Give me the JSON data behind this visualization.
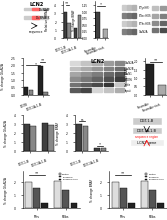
{
  "bg_color": "#ffffff",
  "panel_A": {
    "title": "LCN2"
  },
  "panel_B": {
    "groups": [
      "DGT-1-B",
      "DGT-1A-1-B"
    ],
    "series": [
      {
        "label": "Scramble",
        "color": "#404040",
        "values": [
          3.2,
          1.2
        ]
      },
      {
        "label": "DKK1-shRNA2",
        "color": "#888888",
        "values": [
          1.8,
          2.8
        ]
      }
    ],
    "ylabel": "Relative mRNA",
    "ylim": [
      0,
      4.5
    ]
  },
  "panel_C": {
    "groups": [
      "Scramble",
      "Scramble+inh"
    ],
    "values": [
      1.0,
      0.35
    ],
    "colors": [
      "#404040",
      "#aaaaaa"
    ],
    "ylabel": "% change BRAF",
    "ylim": [
      0,
      1.4
    ]
  },
  "panel_D": {
    "rows": [
      "P-Tyr(HY)",
      "P-Ser-HOS",
      "P-Thr-HOS",
      "GluN2A"
    ],
    "ncols": 3
  },
  "panel_E": {
    "rows": 4,
    "ncols": 2
  },
  "panel_F": {
    "groups": [
      "DGT8",
      "DGT-1A-1-B"
    ],
    "series": [
      {
        "label": "Scramble",
        "color": "#222222",
        "values": [
          0.5,
          1.95
        ]
      },
      {
        "label": "Scramble+inh",
        "color": "#888888",
        "values": [
          0.3,
          0.2
        ]
      }
    ],
    "ylabel": "% change GluN2A",
    "ylim": [
      0,
      2.5
    ]
  },
  "panel_G": {
    "title": "LCN2",
    "blot_rows": 6,
    "blot_cols": 5,
    "row_labels": [
      "GluN2A",
      "GluN2B",
      "GluN1",
      "PSD95",
      "actin",
      "Input"
    ]
  },
  "panel_H": {
    "groups": [
      "Scramble",
      "Scramble+inh"
    ],
    "values": [
      1.85,
      0.55
    ],
    "colors": [
      "#222222",
      "#aaaaaa"
    ],
    "ylabel": "Relative BRAF",
    "ylim": [
      0,
      2.2
    ]
  },
  "panel_I": {
    "series": [
      {
        "label": "Scramble",
        "color": "#404040",
        "values": [
          3.0,
          3.1
        ]
      },
      {
        "label": "Scramble+DKK1",
        "color": "#888888",
        "values": [
          2.8,
          2.85
        ]
      }
    ],
    "groups": [
      "DGT-1-B",
      "DGT-1A-1-B"
    ],
    "ylabel": "% change GluN2A",
    "ylim": [
      0,
      4.0
    ]
  },
  "panel_J": {
    "series": [
      {
        "label": "Scramble",
        "color": "#404040",
        "values": [
          3.0,
          0.4
        ]
      },
      {
        "label": "Scramble+DKK1",
        "color": "#888888",
        "values": [
          2.8,
          0.35
        ]
      }
    ],
    "groups": [
      "DGT-1-B",
      "DGT-1A-1-B"
    ],
    "ylabel": "% change BRAF",
    "ylim": [
      0,
      4.0
    ]
  },
  "panel_M": {
    "groups": [
      "PTrs",
      "PDbs"
    ],
    "series": [
      {
        "label": "Control",
        "color": "#dddddd",
        "values": [
          2.0,
          2.1
        ]
      },
      {
        "label": "Scramble",
        "color": "#555555",
        "values": [
          1.5,
          1.4
        ]
      },
      {
        "label": "Scramble+inh",
        "color": "#222222",
        "values": [
          0.4,
          0.35
        ]
      }
    ],
    "ylabel": "% change GluN2A",
    "ylim": [
      0,
      2.8
    ]
  },
  "panel_N": {
    "groups": [
      "PTrs",
      "PDbs"
    ],
    "series": [
      {
        "label": "Control",
        "color": "#dddddd",
        "values": [
          2.0,
          2.1
        ]
      },
      {
        "label": "Scramble",
        "color": "#555555",
        "values": [
          1.5,
          1.4
        ]
      },
      {
        "label": "Scramble+inh",
        "color": "#222222",
        "values": [
          0.4,
          0.35
        ]
      }
    ],
    "ylabel": "% change BRAF",
    "ylim": [
      0,
      2.8
    ]
  }
}
